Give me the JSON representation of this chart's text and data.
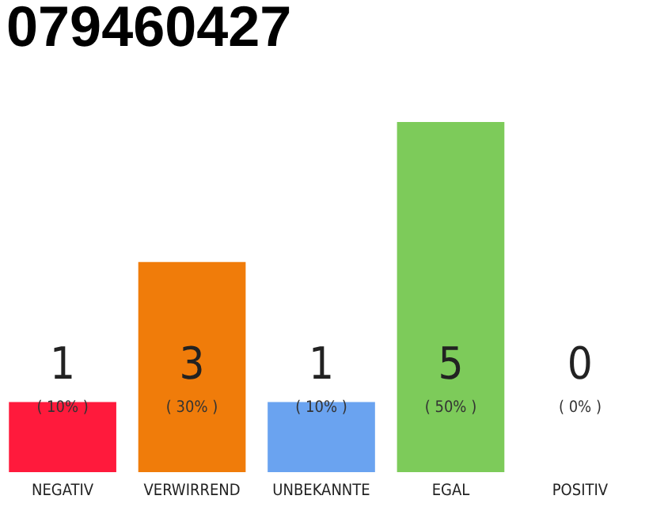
{
  "chart_data": {
    "type": "bar",
    "title": "079460427",
    "categories": [
      "NEGATIV",
      "VERWIRREND",
      "UNBEKANNTE",
      "EGAL",
      "POSITIV"
    ],
    "values": [
      1,
      3,
      1,
      5,
      0
    ],
    "colors": [
      "#ff1a3c",
      "#f07c0a",
      "#6aa3f0",
      "#7dcb5a",
      "#eeeeee"
    ],
    "data_labels": true,
    "tick_labels": "x",
    "annotations": [
      "( 10% )",
      "( 30% )",
      "( 10% )",
      "( 50% )",
      "( 0% )"
    ]
  }
}
